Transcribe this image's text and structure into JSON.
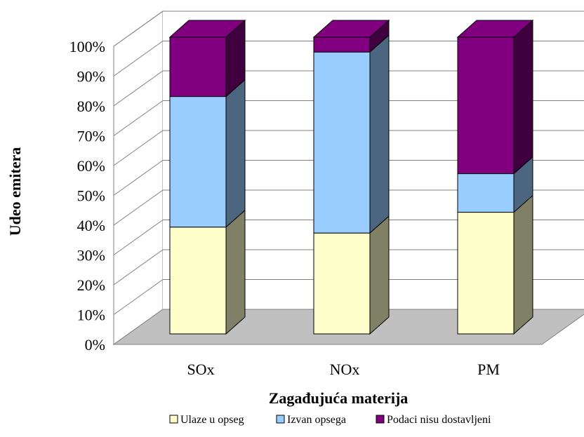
{
  "chart_data": {
    "type": "bar",
    "stacked": true,
    "three_d": true,
    "categories": [
      "SOx",
      "NOx",
      "PM"
    ],
    "series": [
      {
        "name": "Ulaze u opseg",
        "values": [
          36,
          34,
          41
        ],
        "color": "#ffffcc",
        "side_color": "#808066"
      },
      {
        "name": "Izvan opsega",
        "values": [
          44,
          61,
          13
        ],
        "color": "#99ccff",
        "side_color": "#4d6680"
      },
      {
        "name": "Podaci nisu dostavljeni",
        "values": [
          20,
          5,
          46
        ],
        "color": "#800080",
        "side_color": "#400040"
      }
    ],
    "xlabel": "Zagađujuća materija",
    "ylabel": "Udeo emitera",
    "ylim": [
      0,
      100
    ],
    "yticks": [
      "0%",
      "10%",
      "20%",
      "30%",
      "40%",
      "50%",
      "60%",
      "70%",
      "80%",
      "90%",
      "100%"
    ],
    "grid": true,
    "legend_position": "bottom",
    "floor_color": "#c0c0c0"
  }
}
